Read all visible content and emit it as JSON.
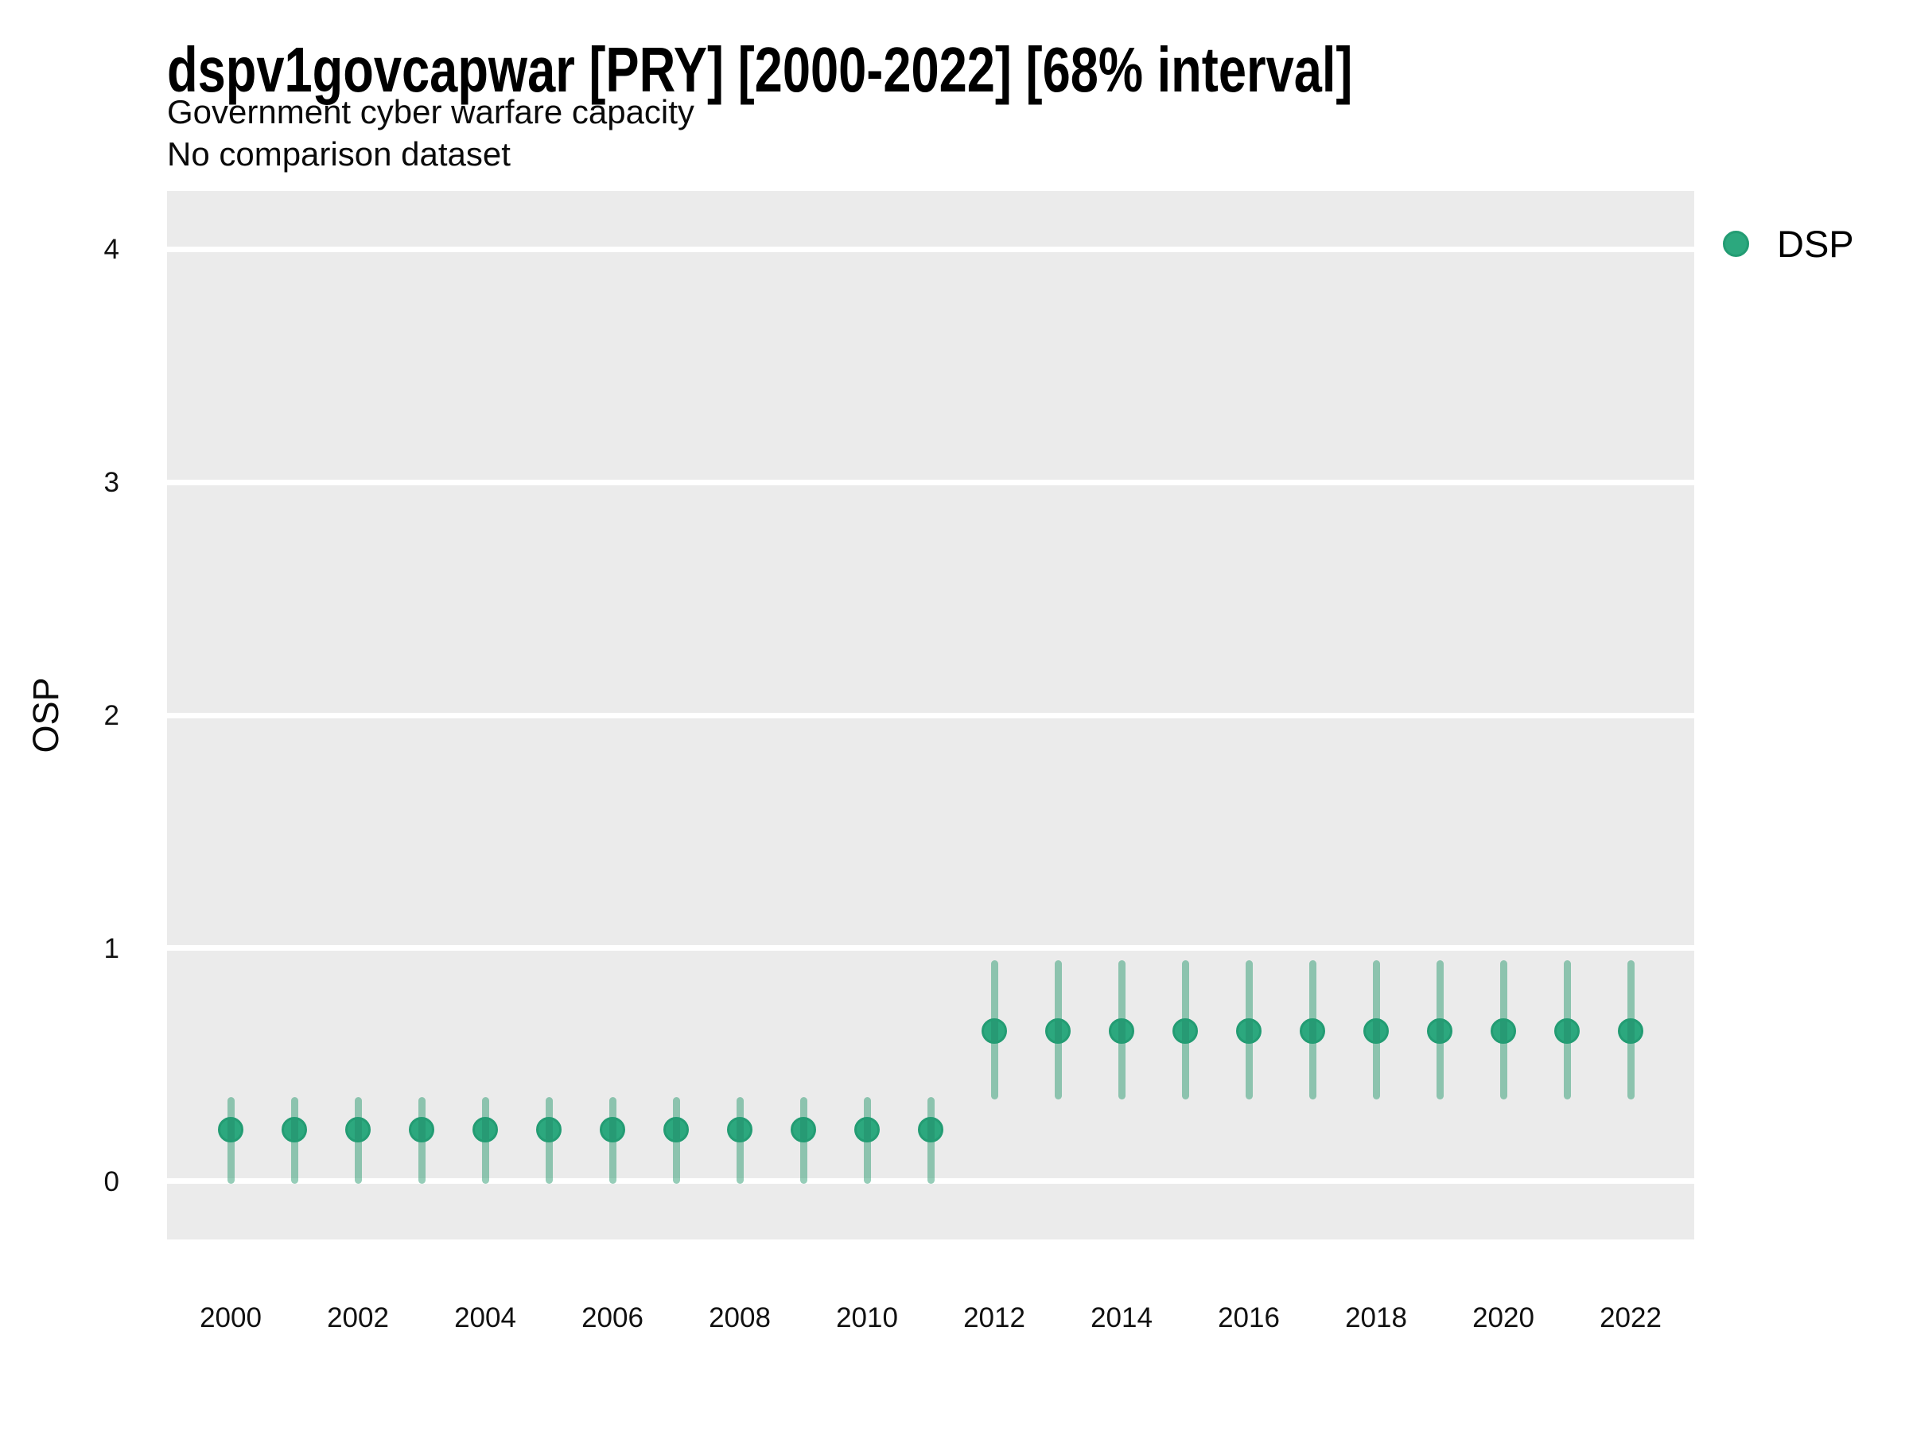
{
  "figure": {
    "title": "dspv1govcapwar [PRY] [2000-2022] [68% interval]",
    "subtitle": "Government cyber warfare capacity",
    "note": "No comparison dataset"
  },
  "chart_data": {
    "type": "pointrange",
    "title": "dspv1govcapwar [PRY] [2000-2022] [68% interval]",
    "subtitle": "Government cyber warfare capacity",
    "note": "No comparison dataset",
    "xlabel": "",
    "ylabel": "OSP",
    "xlim": [
      1999,
      2023
    ],
    "ylim": [
      -0.25,
      4.25
    ],
    "xticks": [
      2000,
      2002,
      2004,
      2006,
      2008,
      2010,
      2012,
      2014,
      2016,
      2018,
      2020,
      2022
    ],
    "yticks": [
      0,
      1,
      2,
      3,
      4
    ],
    "grid": "horizontal major gridlines only, white on gray panel",
    "legend": {
      "position": "right",
      "label": "DSP"
    },
    "interval_level": "68%",
    "series": [
      {
        "name": "DSP",
        "points": [
          {
            "year": 2000,
            "est": 0.22,
            "lo": -0.01,
            "hi": 0.36
          },
          {
            "year": 2001,
            "est": 0.22,
            "lo": -0.01,
            "hi": 0.36
          },
          {
            "year": 2002,
            "est": 0.22,
            "lo": -0.01,
            "hi": 0.36
          },
          {
            "year": 2003,
            "est": 0.22,
            "lo": -0.01,
            "hi": 0.36
          },
          {
            "year": 2004,
            "est": 0.22,
            "lo": -0.01,
            "hi": 0.36
          },
          {
            "year": 2005,
            "est": 0.22,
            "lo": -0.01,
            "hi": 0.36
          },
          {
            "year": 2006,
            "est": 0.22,
            "lo": -0.01,
            "hi": 0.36
          },
          {
            "year": 2007,
            "est": 0.22,
            "lo": -0.01,
            "hi": 0.36
          },
          {
            "year": 2008,
            "est": 0.22,
            "lo": -0.01,
            "hi": 0.36
          },
          {
            "year": 2009,
            "est": 0.22,
            "lo": -0.01,
            "hi": 0.36
          },
          {
            "year": 2010,
            "est": 0.22,
            "lo": -0.01,
            "hi": 0.36
          },
          {
            "year": 2011,
            "est": 0.22,
            "lo": -0.01,
            "hi": 0.36
          },
          {
            "year": 2012,
            "est": 0.645,
            "lo": 0.35,
            "hi": 0.95
          },
          {
            "year": 2013,
            "est": 0.645,
            "lo": 0.35,
            "hi": 0.95
          },
          {
            "year": 2014,
            "est": 0.645,
            "lo": 0.35,
            "hi": 0.95
          },
          {
            "year": 2015,
            "est": 0.645,
            "lo": 0.35,
            "hi": 0.95
          },
          {
            "year": 2016,
            "est": 0.645,
            "lo": 0.35,
            "hi": 0.95
          },
          {
            "year": 2017,
            "est": 0.645,
            "lo": 0.35,
            "hi": 0.95
          },
          {
            "year": 2018,
            "est": 0.645,
            "lo": 0.35,
            "hi": 0.95
          },
          {
            "year": 2019,
            "est": 0.645,
            "lo": 0.35,
            "hi": 0.95
          },
          {
            "year": 2020,
            "est": 0.645,
            "lo": 0.35,
            "hi": 0.95
          },
          {
            "year": 2021,
            "est": 0.645,
            "lo": 0.35,
            "hi": 0.95
          },
          {
            "year": 2022,
            "est": 0.645,
            "lo": 0.35,
            "hi": 0.95
          }
        ]
      }
    ],
    "colors": {
      "point": "#2CA87E",
      "point_border": "#239C73",
      "interval": "rgba(54,160,118,0.52)",
      "panel": "#EBEBEB",
      "grid": "#FFFFFF",
      "text": "#000000"
    }
  }
}
